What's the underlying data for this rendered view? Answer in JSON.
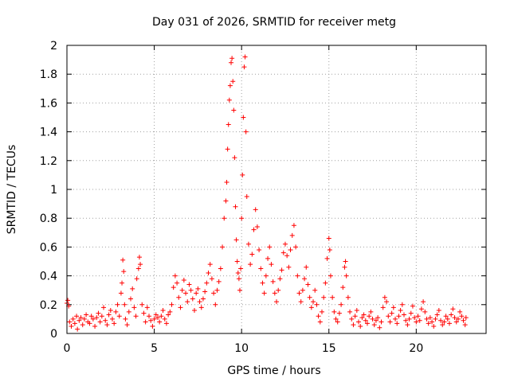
{
  "chart_data": {
    "type": "scatter",
    "title": "Day 031 of 2026, SRMTID for receiver metg",
    "xlabel": "GPS time / hours",
    "ylabel": "SRMTID / TECUs",
    "xlim": [
      0,
      24
    ],
    "ylim": [
      0,
      2
    ],
    "x_ticks": [
      0,
      5,
      10,
      15,
      20
    ],
    "x_tick_labels": [
      "0",
      "5",
      "10",
      "15",
      "20"
    ],
    "y_ticks": [
      0,
      0.2,
      0.4,
      0.6,
      0.8,
      1.0,
      1.2,
      1.4,
      1.6,
      1.8,
      2.0
    ],
    "y_tick_labels": [
      "0",
      "0.2",
      "0.4",
      "0.6",
      "0.8",
      "1",
      "1.2",
      "1.4",
      "1.6",
      "1.8",
      "2"
    ],
    "grid": true,
    "legend": "none",
    "marker": "+",
    "series": [
      {
        "name": "SRMTID",
        "color": "#ff0000",
        "points": [
          [
            0.0,
            0.21
          ],
          [
            0.05,
            0.23
          ],
          [
            0.1,
            0.19
          ],
          [
            0.15,
            0.08
          ],
          [
            0.25,
            0.05
          ],
          [
            0.35,
            0.1
          ],
          [
            0.45,
            0.07
          ],
          [
            0.55,
            0.12
          ],
          [
            0.6,
            0.03
          ],
          [
            0.7,
            0.09
          ],
          [
            0.8,
            0.11
          ],
          [
            0.9,
            0.06
          ],
          [
            1.0,
            0.1
          ],
          [
            1.1,
            0.13
          ],
          [
            1.2,
            0.08
          ],
          [
            1.3,
            0.07
          ],
          [
            1.4,
            0.12
          ],
          [
            1.5,
            0.1
          ],
          [
            1.6,
            0.05
          ],
          [
            1.7,
            0.11
          ],
          [
            1.8,
            0.14
          ],
          [
            1.9,
            0.08
          ],
          [
            2.0,
            0.12
          ],
          [
            2.1,
            0.18
          ],
          [
            2.2,
            0.09
          ],
          [
            2.3,
            0.06
          ],
          [
            2.4,
            0.13
          ],
          [
            2.5,
            0.16
          ],
          [
            2.6,
            0.1
          ],
          [
            2.7,
            0.07
          ],
          [
            2.8,
            0.15
          ],
          [
            2.9,
            0.2
          ],
          [
            3.0,
            0.12
          ],
          [
            3.1,
            0.28
          ],
          [
            3.15,
            0.35
          ],
          [
            3.2,
            0.51
          ],
          [
            3.25,
            0.43
          ],
          [
            3.3,
            0.2
          ],
          [
            3.35,
            0.1
          ],
          [
            3.45,
            0.06
          ],
          [
            3.55,
            0.15
          ],
          [
            3.65,
            0.24
          ],
          [
            3.75,
            0.31
          ],
          [
            3.85,
            0.18
          ],
          [
            3.95,
            0.12
          ],
          [
            4.0,
            0.38
          ],
          [
            4.1,
            0.45
          ],
          [
            4.15,
            0.53
          ],
          [
            4.2,
            0.48
          ],
          [
            4.3,
            0.2
          ],
          [
            4.4,
            0.14
          ],
          [
            4.5,
            0.08
          ],
          [
            4.6,
            0.18
          ],
          [
            4.7,
            0.12
          ],
          [
            4.8,
            0.09
          ],
          [
            4.9,
            0.05
          ],
          [
            5.0,
            0.1
          ],
          [
            5.1,
            0.13
          ],
          [
            5.2,
            0.11
          ],
          [
            5.3,
            0.08
          ],
          [
            5.4,
            0.12
          ],
          [
            5.5,
            0.16
          ],
          [
            5.6,
            0.1
          ],
          [
            5.7,
            0.07
          ],
          [
            5.8,
            0.13
          ],
          [
            5.9,
            0.15
          ],
          [
            6.0,
            0.2
          ],
          [
            6.1,
            0.32
          ],
          [
            6.2,
            0.4
          ],
          [
            6.3,
            0.35
          ],
          [
            6.4,
            0.25
          ],
          [
            6.5,
            0.18
          ],
          [
            6.6,
            0.3
          ],
          [
            6.7,
            0.37
          ],
          [
            6.8,
            0.28
          ],
          [
            6.9,
            0.22
          ],
          [
            7.0,
            0.34
          ],
          [
            7.1,
            0.3
          ],
          [
            7.2,
            0.24
          ],
          [
            7.3,
            0.16
          ],
          [
            7.4,
            0.28
          ],
          [
            7.5,
            0.31
          ],
          [
            7.6,
            0.22
          ],
          [
            7.7,
            0.18
          ],
          [
            7.8,
            0.24
          ],
          [
            7.9,
            0.29
          ],
          [
            8.0,
            0.35
          ],
          [
            8.1,
            0.42
          ],
          [
            8.2,
            0.48
          ],
          [
            8.3,
            0.38
          ],
          [
            8.4,
            0.28
          ],
          [
            8.5,
            0.2
          ],
          [
            8.6,
            0.3
          ],
          [
            8.7,
            0.36
          ],
          [
            8.8,
            0.45
          ],
          [
            8.9,
            0.6
          ],
          [
            9.0,
            0.8
          ],
          [
            9.1,
            0.92
          ],
          [
            9.15,
            1.05
          ],
          [
            9.2,
            1.28
          ],
          [
            9.25,
            1.45
          ],
          [
            9.3,
            1.62
          ],
          [
            9.35,
            1.72
          ],
          [
            9.4,
            1.88
          ],
          [
            9.45,
            1.91
          ],
          [
            9.5,
            1.75
          ],
          [
            9.55,
            1.55
          ],
          [
            9.6,
            1.22
          ],
          [
            9.65,
            0.88
          ],
          [
            9.7,
            0.65
          ],
          [
            9.75,
            0.5
          ],
          [
            9.8,
            0.42
          ],
          [
            9.85,
            0.38
          ],
          [
            9.9,
            0.3
          ],
          [
            9.95,
            0.45
          ],
          [
            10.0,
            0.8
          ],
          [
            10.05,
            1.1
          ],
          [
            10.1,
            1.5
          ],
          [
            10.15,
            1.85
          ],
          [
            10.2,
            1.92
          ],
          [
            10.25,
            1.4
          ],
          [
            10.3,
            0.95
          ],
          [
            10.4,
            0.62
          ],
          [
            10.5,
            0.48
          ],
          [
            10.6,
            0.55
          ],
          [
            10.7,
            0.72
          ],
          [
            10.8,
            0.86
          ],
          [
            10.9,
            0.74
          ],
          [
            11.0,
            0.58
          ],
          [
            11.1,
            0.45
          ],
          [
            11.2,
            0.35
          ],
          [
            11.3,
            0.28
          ],
          [
            11.4,
            0.4
          ],
          [
            11.5,
            0.52
          ],
          [
            11.6,
            0.6
          ],
          [
            11.7,
            0.48
          ],
          [
            11.8,
            0.36
          ],
          [
            11.9,
            0.28
          ],
          [
            12.0,
            0.22
          ],
          [
            12.1,
            0.3
          ],
          [
            12.2,
            0.38
          ],
          [
            12.3,
            0.44
          ],
          [
            12.4,
            0.56
          ],
          [
            12.5,
            0.62
          ],
          [
            12.6,
            0.54
          ],
          [
            12.7,
            0.46
          ],
          [
            12.8,
            0.58
          ],
          [
            12.9,
            0.68
          ],
          [
            13.0,
            0.75
          ],
          [
            13.1,
            0.6
          ],
          [
            13.2,
            0.4
          ],
          [
            13.3,
            0.28
          ],
          [
            13.4,
            0.22
          ],
          [
            13.5,
            0.3
          ],
          [
            13.6,
            0.38
          ],
          [
            13.7,
            0.46
          ],
          [
            13.8,
            0.34
          ],
          [
            13.9,
            0.25
          ],
          [
            14.0,
            0.18
          ],
          [
            14.1,
            0.22
          ],
          [
            14.2,
            0.3
          ],
          [
            14.3,
            0.2
          ],
          [
            14.4,
            0.12
          ],
          [
            14.5,
            0.08
          ],
          [
            14.6,
            0.15
          ],
          [
            14.7,
            0.25
          ],
          [
            14.8,
            0.35
          ],
          [
            14.9,
            0.52
          ],
          [
            15.0,
            0.66
          ],
          [
            15.05,
            0.58
          ],
          [
            15.1,
            0.4
          ],
          [
            15.2,
            0.25
          ],
          [
            15.3,
            0.15
          ],
          [
            15.4,
            0.1
          ],
          [
            15.5,
            0.08
          ],
          [
            15.6,
            0.14
          ],
          [
            15.7,
            0.2
          ],
          [
            15.8,
            0.32
          ],
          [
            15.9,
            0.46
          ],
          [
            15.95,
            0.5
          ],
          [
            16.0,
            0.4
          ],
          [
            16.1,
            0.25
          ],
          [
            16.2,
            0.15
          ],
          [
            16.3,
            0.1
          ],
          [
            16.4,
            0.06
          ],
          [
            16.5,
            0.12
          ],
          [
            16.6,
            0.16
          ],
          [
            16.7,
            0.08
          ],
          [
            16.8,
            0.05
          ],
          [
            16.9,
            0.11
          ],
          [
            17.0,
            0.13
          ],
          [
            17.1,
            0.09
          ],
          [
            17.2,
            0.07
          ],
          [
            17.3,
            0.12
          ],
          [
            17.4,
            0.15
          ],
          [
            17.5,
            0.1
          ],
          [
            17.6,
            0.06
          ],
          [
            17.7,
            0.09
          ],
          [
            17.8,
            0.11
          ],
          [
            17.9,
            0.04
          ],
          [
            18.0,
            0.08
          ],
          [
            18.1,
            0.18
          ],
          [
            18.2,
            0.25
          ],
          [
            18.3,
            0.22
          ],
          [
            18.4,
            0.12
          ],
          [
            18.5,
            0.08
          ],
          [
            18.6,
            0.14
          ],
          [
            18.7,
            0.18
          ],
          [
            18.8,
            0.1
          ],
          [
            18.9,
            0.07
          ],
          [
            19.0,
            0.12
          ],
          [
            19.1,
            0.16
          ],
          [
            19.2,
            0.2
          ],
          [
            19.3,
            0.13
          ],
          [
            19.4,
            0.09
          ],
          [
            19.5,
            0.06
          ],
          [
            19.6,
            0.1
          ],
          [
            19.7,
            0.14
          ],
          [
            19.8,
            0.19
          ],
          [
            19.9,
            0.11
          ],
          [
            20.0,
            0.08
          ],
          [
            20.1,
            0.12
          ],
          [
            20.2,
            0.09
          ],
          [
            20.3,
            0.17
          ],
          [
            20.4,
            0.22
          ],
          [
            20.5,
            0.15
          ],
          [
            20.6,
            0.1
          ],
          [
            20.7,
            0.07
          ],
          [
            20.8,
            0.11
          ],
          [
            20.9,
            0.08
          ],
          [
            21.0,
            0.05
          ],
          [
            21.1,
            0.1
          ],
          [
            21.2,
            0.13
          ],
          [
            21.3,
            0.16
          ],
          [
            21.4,
            0.09
          ],
          [
            21.5,
            0.06
          ],
          [
            21.6,
            0.08
          ],
          [
            21.7,
            0.12
          ],
          [
            21.8,
            0.1
          ],
          [
            21.9,
            0.07
          ],
          [
            22.0,
            0.13
          ],
          [
            22.1,
            0.17
          ],
          [
            22.2,
            0.11
          ],
          [
            22.3,
            0.08
          ],
          [
            22.4,
            0.1
          ],
          [
            22.5,
            0.15
          ],
          [
            22.6,
            0.12
          ],
          [
            22.7,
            0.09
          ],
          [
            22.8,
            0.06
          ],
          [
            22.85,
            0.11
          ]
        ]
      }
    ]
  }
}
